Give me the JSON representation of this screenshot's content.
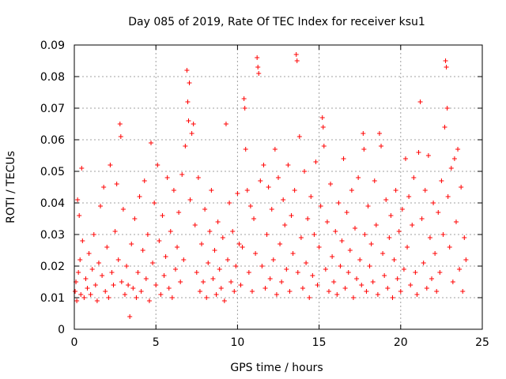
{
  "chart_data": {
    "type": "scatter",
    "title": "Day 085 of 2019, Rate Of TEC Index for receiver ksu1",
    "xlabel": "GPS time / hours",
    "ylabel": "ROTI / TECUs",
    "xlim": [
      0,
      25
    ],
    "ylim": [
      0,
      0.09
    ],
    "xticks": [
      "0",
      "5",
      "10",
      "15",
      "20",
      "25"
    ],
    "yticks": [
      "0",
      "0.01",
      "0.02",
      "0.03",
      "0.04",
      "0.05",
      "0.06",
      "0.07",
      "0.08",
      "0.09"
    ],
    "grid": true,
    "marker": "+",
    "color": "#ff0000",
    "series": [
      {
        "name": "ROTI",
        "points": [
          [
            0.05,
            0.012
          ],
          [
            0.1,
            0.015
          ],
          [
            0.15,
            0.009
          ],
          [
            0.2,
            0.041
          ],
          [
            0.25,
            0.018
          ],
          [
            0.3,
            0.036
          ],
          [
            0.35,
            0.022
          ],
          [
            0.4,
            0.011
          ],
          [
            0.45,
            0.051
          ],
          [
            0.5,
            0.028
          ],
          [
            0.6,
            0.01
          ],
          [
            0.7,
            0.016
          ],
          [
            0.8,
            0.013
          ],
          [
            0.9,
            0.024
          ],
          [
            1.0,
            0.011
          ],
          [
            1.1,
            0.019
          ],
          [
            1.2,
            0.03
          ],
          [
            1.3,
            0.014
          ],
          [
            1.4,
            0.009
          ],
          [
            1.5,
            0.021
          ],
          [
            1.6,
            0.039
          ],
          [
            1.7,
            0.017
          ],
          [
            1.8,
            0.045
          ],
          [
            1.9,
            0.012
          ],
          [
            2.0,
            0.026
          ],
          [
            2.1,
            0.01
          ],
          [
            2.2,
            0.052
          ],
          [
            2.3,
            0.018
          ],
          [
            2.4,
            0.014
          ],
          [
            2.5,
            0.031
          ],
          [
            2.6,
            0.046
          ],
          [
            2.7,
            0.022
          ],
          [
            2.8,
            0.065
          ],
          [
            2.85,
            0.061
          ],
          [
            2.9,
            0.015
          ],
          [
            3.0,
            0.038
          ],
          [
            3.1,
            0.011
          ],
          [
            3.2,
            0.02
          ],
          [
            3.3,
            0.014
          ],
          [
            3.4,
            0.004
          ],
          [
            3.5,
            0.027
          ],
          [
            3.6,
            0.013
          ],
          [
            3.7,
            0.035
          ],
          [
            3.8,
            0.01
          ],
          [
            3.9,
            0.018
          ],
          [
            4.0,
            0.042
          ],
          [
            4.1,
            0.012
          ],
          [
            4.2,
            0.025
          ],
          [
            4.3,
            0.047
          ],
          [
            4.4,
            0.016
          ],
          [
            4.5,
            0.03
          ],
          [
            4.6,
            0.009
          ],
          [
            4.7,
            0.059
          ],
          [
            4.8,
            0.021
          ],
          [
            4.9,
            0.04
          ],
          [
            5.0,
            0.014
          ],
          [
            5.1,
            0.052
          ],
          [
            5.2,
            0.028
          ],
          [
            5.3,
            0.011
          ],
          [
            5.4,
            0.036
          ],
          [
            5.5,
            0.017
          ],
          [
            5.6,
            0.023
          ],
          [
            5.7,
            0.048
          ],
          [
            5.8,
            0.013
          ],
          [
            5.9,
            0.031
          ],
          [
            6.0,
            0.01
          ],
          [
            6.1,
            0.044
          ],
          [
            6.2,
            0.019
          ],
          [
            6.3,
            0.026
          ],
          [
            6.4,
            0.037
          ],
          [
            6.5,
            0.015
          ],
          [
            6.6,
            0.049
          ],
          [
            6.7,
            0.022
          ],
          [
            6.8,
            0.058
          ],
          [
            6.9,
            0.082
          ],
          [
            6.95,
            0.072
          ],
          [
            7.0,
            0.066
          ],
          [
            7.05,
            0.078
          ],
          [
            7.1,
            0.041
          ],
          [
            7.2,
            0.062
          ],
          [
            7.3,
            0.065
          ],
          [
            7.4,
            0.033
          ],
          [
            7.5,
            0.018
          ],
          [
            7.6,
            0.048
          ],
          [
            7.7,
            0.012
          ],
          [
            7.8,
            0.027
          ],
          [
            7.9,
            0.015
          ],
          [
            8.0,
            0.038
          ],
          [
            8.1,
            0.01
          ],
          [
            8.2,
            0.021
          ],
          [
            8.3,
            0.031
          ],
          [
            8.4,
            0.044
          ],
          [
            8.5,
            0.016
          ],
          [
            8.6,
            0.025
          ],
          [
            8.7,
            0.011
          ],
          [
            8.8,
            0.034
          ],
          [
            8.9,
            0.019
          ],
          [
            9.0,
            0.013
          ],
          [
            9.1,
            0.029
          ],
          [
            9.2,
            0.009
          ],
          [
            9.3,
            0.065
          ],
          [
            9.4,
            0.022
          ],
          [
            9.5,
            0.04
          ],
          [
            9.6,
            0.015
          ],
          [
            9.7,
            0.031
          ],
          [
            9.8,
            0.012
          ],
          [
            9.9,
            0.02
          ],
          [
            10.0,
            0.043
          ],
          [
            10.1,
            0.027
          ],
          [
            10.2,
            0.014
          ],
          [
            10.3,
            0.026
          ],
          [
            10.4,
            0.073
          ],
          [
            10.45,
            0.07
          ],
          [
            10.5,
            0.057
          ],
          [
            10.6,
            0.044
          ],
          [
            10.7,
            0.018
          ],
          [
            10.8,
            0.039
          ],
          [
            10.9,
            0.012
          ],
          [
            11.0,
            0.035
          ],
          [
            11.1,
            0.024
          ],
          [
            11.2,
            0.086
          ],
          [
            11.25,
            0.083
          ],
          [
            11.3,
            0.081
          ],
          [
            11.4,
            0.047
          ],
          [
            11.5,
            0.02
          ],
          [
            11.6,
            0.052
          ],
          [
            11.7,
            0.013
          ],
          [
            11.8,
            0.03
          ],
          [
            11.9,
            0.045
          ],
          [
            12.0,
            0.016
          ],
          [
            12.1,
            0.038
          ],
          [
            12.2,
            0.022
          ],
          [
            12.3,
            0.057
          ],
          [
            12.4,
            0.011
          ],
          [
            12.5,
            0.048
          ],
          [
            12.6,
            0.027
          ],
          [
            12.7,
            0.015
          ],
          [
            12.8,
            0.041
          ],
          [
            12.9,
            0.033
          ],
          [
            13.0,
            0.019
          ],
          [
            13.1,
            0.052
          ],
          [
            13.2,
            0.012
          ],
          [
            13.3,
            0.036
          ],
          [
            13.4,
            0.024
          ],
          [
            13.5,
            0.044
          ],
          [
            13.6,
            0.087
          ],
          [
            13.65,
            0.085
          ],
          [
            13.7,
            0.018
          ],
          [
            13.8,
            0.061
          ],
          [
            13.9,
            0.029
          ],
          [
            14.0,
            0.013
          ],
          [
            14.1,
            0.05
          ],
          [
            14.2,
            0.021
          ],
          [
            14.3,
            0.035
          ],
          [
            14.4,
            0.01
          ],
          [
            14.5,
            0.042
          ],
          [
            14.6,
            0.017
          ],
          [
            14.7,
            0.03
          ],
          [
            14.8,
            0.053
          ],
          [
            14.9,
            0.014
          ],
          [
            15.0,
            0.026
          ],
          [
            15.1,
            0.039
          ],
          [
            15.2,
            0.067
          ],
          [
            15.25,
            0.064
          ],
          [
            15.3,
            0.058
          ],
          [
            15.4,
            0.019
          ],
          [
            15.5,
            0.034
          ],
          [
            15.6,
            0.012
          ],
          [
            15.7,
            0.046
          ],
          [
            15.8,
            0.023
          ],
          [
            15.9,
            0.015
          ],
          [
            16.0,
            0.031
          ],
          [
            16.1,
            0.011
          ],
          [
            16.2,
            0.04
          ],
          [
            16.3,
            0.02
          ],
          [
            16.4,
            0.028
          ],
          [
            16.5,
            0.054
          ],
          [
            16.6,
            0.013
          ],
          [
            16.7,
            0.037
          ],
          [
            16.8,
            0.018
          ],
          [
            16.9,
            0.025
          ],
          [
            17.0,
            0.044
          ],
          [
            17.1,
            0.01
          ],
          [
            17.2,
            0.032
          ],
          [
            17.3,
            0.016
          ],
          [
            17.4,
            0.048
          ],
          [
            17.5,
            0.022
          ],
          [
            17.6,
            0.014
          ],
          [
            17.7,
            0.062
          ],
          [
            17.75,
            0.057
          ],
          [
            17.8,
            0.03
          ],
          [
            17.9,
            0.012
          ],
          [
            18.0,
            0.039
          ],
          [
            18.1,
            0.02
          ],
          [
            18.2,
            0.027
          ],
          [
            18.3,
            0.015
          ],
          [
            18.4,
            0.047
          ],
          [
            18.5,
            0.033
          ],
          [
            18.6,
            0.011
          ],
          [
            18.7,
            0.062
          ],
          [
            18.8,
            0.058
          ],
          [
            18.9,
            0.024
          ],
          [
            19.0,
            0.017
          ],
          [
            19.1,
            0.041
          ],
          [
            19.2,
            0.013
          ],
          [
            19.3,
            0.029
          ],
          [
            19.4,
            0.036
          ],
          [
            19.5,
            0.01
          ],
          [
            19.6,
            0.022
          ],
          [
            19.7,
            0.044
          ],
          [
            19.8,
            0.016
          ],
          [
            19.9,
            0.031
          ],
          [
            20.0,
            0.012
          ],
          [
            20.1,
            0.038
          ],
          [
            20.2,
            0.019
          ],
          [
            20.3,
            0.054
          ],
          [
            20.4,
            0.026
          ],
          [
            20.5,
            0.042
          ],
          [
            20.6,
            0.014
          ],
          [
            20.7,
            0.033
          ],
          [
            20.8,
            0.048
          ],
          [
            20.9,
            0.018
          ],
          [
            21.0,
            0.011
          ],
          [
            21.1,
            0.056
          ],
          [
            21.2,
            0.072
          ],
          [
            21.3,
            0.035
          ],
          [
            21.4,
            0.021
          ],
          [
            21.5,
            0.044
          ],
          [
            21.6,
            0.013
          ],
          [
            21.7,
            0.055
          ],
          [
            21.8,
            0.029
          ],
          [
            21.9,
            0.016
          ],
          [
            22.0,
            0.04
          ],
          [
            22.1,
            0.024
          ],
          [
            22.2,
            0.012
          ],
          [
            22.3,
            0.037
          ],
          [
            22.4,
            0.018
          ],
          [
            22.5,
            0.047
          ],
          [
            22.6,
            0.03
          ],
          [
            22.7,
            0.064
          ],
          [
            22.75,
            0.085
          ],
          [
            22.8,
            0.083
          ],
          [
            22.85,
            0.07
          ],
          [
            22.9,
            0.042
          ],
          [
            23.0,
            0.026
          ],
          [
            23.1,
            0.051
          ],
          [
            23.2,
            0.015
          ],
          [
            23.3,
            0.054
          ],
          [
            23.4,
            0.034
          ],
          [
            23.5,
            0.057
          ],
          [
            23.6,
            0.019
          ],
          [
            23.7,
            0.045
          ],
          [
            23.8,
            0.012
          ],
          [
            23.9,
            0.029
          ],
          [
            24.0,
            0.022
          ]
        ]
      }
    ]
  }
}
